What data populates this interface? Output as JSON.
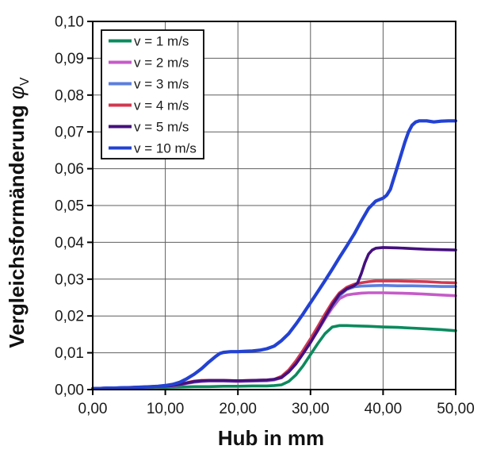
{
  "chart_data": {
    "type": "line",
    "title": "",
    "xlabel": "Hub in mm",
    "ylabel": "Vergleichsformänderung",
    "ylabel_symbol": "φ",
    "ylabel_symbol_sub": "V",
    "xlim": [
      0,
      50
    ],
    "ylim": [
      0,
      0.1
    ],
    "x_ticks": [
      0,
      10,
      20,
      30,
      40,
      50
    ],
    "x_tick_labels": [
      "0,00",
      "10,00",
      "20,00",
      "30,00",
      "40,00",
      "50,00"
    ],
    "y_ticks": [
      0,
      0.01,
      0.02,
      0.03,
      0.04,
      0.05,
      0.06,
      0.07,
      0.08,
      0.09,
      0.1
    ],
    "y_tick_labels": [
      "0,00",
      "0,01",
      "0,02",
      "0,03",
      "0,04",
      "0,05",
      "0,06",
      "0,07",
      "0,08",
      "0,09",
      "0,10"
    ],
    "grid": true,
    "legend_position": "top-left",
    "colors": {
      "grid": "#5f5f5f",
      "axis": "#000000",
      "background": "#ffffff",
      "text": "#1a1a1a"
    },
    "series": [
      {
        "name": "v = 1 m/s",
        "color": "#0b8a5e",
        "points": [
          [
            0,
            0.0002
          ],
          [
            2,
            0.0003
          ],
          [
            4,
            0.0004
          ],
          [
            6,
            0.0004
          ],
          [
            8,
            0.0005
          ],
          [
            10,
            0.0006
          ],
          [
            12,
            0.0007
          ],
          [
            14,
            0.0008
          ],
          [
            16,
            0.0008
          ],
          [
            18,
            0.0009
          ],
          [
            20,
            0.0009
          ],
          [
            22,
            0.001
          ],
          [
            24,
            0.001
          ],
          [
            25,
            0.0011
          ],
          [
            26,
            0.0013
          ],
          [
            27,
            0.0022
          ],
          [
            28,
            0.004
          ],
          [
            29,
            0.0065
          ],
          [
            30,
            0.0095
          ],
          [
            31,
            0.0125
          ],
          [
            32,
            0.0152
          ],
          [
            33,
            0.017
          ],
          [
            34,
            0.0174
          ],
          [
            35,
            0.0174
          ],
          [
            36,
            0.0173
          ],
          [
            38,
            0.0172
          ],
          [
            40,
            0.017
          ],
          [
            42,
            0.0169
          ],
          [
            44,
            0.0167
          ],
          [
            46,
            0.0165
          ],
          [
            48,
            0.0163
          ],
          [
            50,
            0.016
          ]
        ]
      },
      {
        "name": "v = 2 m/s",
        "color": "#c55bc8",
        "points": [
          [
            0,
            0.0003
          ],
          [
            2,
            0.0004
          ],
          [
            4,
            0.0005
          ],
          [
            6,
            0.0006
          ],
          [
            8,
            0.0007
          ],
          [
            10,
            0.0008
          ],
          [
            11,
            0.001
          ],
          [
            12,
            0.0013
          ],
          [
            13,
            0.0017
          ],
          [
            14,
            0.002
          ],
          [
            15,
            0.0022
          ],
          [
            16,
            0.0023
          ],
          [
            18,
            0.0023
          ],
          [
            20,
            0.0022
          ],
          [
            22,
            0.0023
          ],
          [
            24,
            0.0024
          ],
          [
            25,
            0.0026
          ],
          [
            26,
            0.0032
          ],
          [
            27,
            0.0048
          ],
          [
            28,
            0.007
          ],
          [
            29,
            0.0098
          ],
          [
            30,
            0.0128
          ],
          [
            31,
            0.016
          ],
          [
            32,
            0.0192
          ],
          [
            33,
            0.0222
          ],
          [
            34,
            0.0247
          ],
          [
            35,
            0.0257
          ],
          [
            36,
            0.026
          ],
          [
            37,
            0.0262
          ],
          [
            38,
            0.0263
          ],
          [
            40,
            0.0263
          ],
          [
            42,
            0.0262
          ],
          [
            44,
            0.0261
          ],
          [
            46,
            0.0259
          ],
          [
            48,
            0.0257
          ],
          [
            50,
            0.0255
          ]
        ]
      },
      {
        "name": "v = 3 m/s",
        "color": "#5c7ede",
        "points": [
          [
            0,
            0.0003
          ],
          [
            2,
            0.0004
          ],
          [
            4,
            0.0005
          ],
          [
            6,
            0.0006
          ],
          [
            8,
            0.0007
          ],
          [
            10,
            0.0009
          ],
          [
            11,
            0.0011
          ],
          [
            12,
            0.0014
          ],
          [
            13,
            0.0018
          ],
          [
            14,
            0.0021
          ],
          [
            15,
            0.0023
          ],
          [
            16,
            0.0024
          ],
          [
            18,
            0.0024
          ],
          [
            20,
            0.0023
          ],
          [
            22,
            0.0024
          ],
          [
            24,
            0.0025
          ],
          [
            25,
            0.0027
          ],
          [
            26,
            0.0034
          ],
          [
            27,
            0.005
          ],
          [
            28,
            0.0073
          ],
          [
            29,
            0.0101
          ],
          [
            30,
            0.0131
          ],
          [
            31,
            0.0164
          ],
          [
            32,
            0.0197
          ],
          [
            33,
            0.0228
          ],
          [
            34,
            0.0255
          ],
          [
            35,
            0.0272
          ],
          [
            36,
            0.0279
          ],
          [
            37,
            0.0281
          ],
          [
            38,
            0.0282
          ],
          [
            40,
            0.0283
          ],
          [
            42,
            0.0282
          ],
          [
            44,
            0.0282
          ],
          [
            46,
            0.0281
          ],
          [
            48,
            0.028
          ],
          [
            50,
            0.028
          ]
        ]
      },
      {
        "name": "v = 4 m/s",
        "color": "#d23850",
        "points": [
          [
            0,
            0.0003
          ],
          [
            2,
            0.0004
          ],
          [
            4,
            0.0005
          ],
          [
            6,
            0.0007
          ],
          [
            8,
            0.0008
          ],
          [
            10,
            0.001
          ],
          [
            11,
            0.0012
          ],
          [
            12,
            0.0015
          ],
          [
            13,
            0.0019
          ],
          [
            14,
            0.0023
          ],
          [
            15,
            0.0025
          ],
          [
            16,
            0.0025
          ],
          [
            18,
            0.0025
          ],
          [
            20,
            0.0024
          ],
          [
            22,
            0.0025
          ],
          [
            24,
            0.0026
          ],
          [
            25,
            0.0028
          ],
          [
            26,
            0.0036
          ],
          [
            27,
            0.0053
          ],
          [
            28,
            0.0078
          ],
          [
            29,
            0.0107
          ],
          [
            30,
            0.0138
          ],
          [
            31,
            0.0171
          ],
          [
            32,
            0.0205
          ],
          [
            33,
            0.0237
          ],
          [
            34,
            0.0263
          ],
          [
            35,
            0.0278
          ],
          [
            36,
            0.0286
          ],
          [
            37,
            0.029
          ],
          [
            38,
            0.0293
          ],
          [
            39,
            0.0295
          ],
          [
            40,
            0.0295
          ],
          [
            42,
            0.0295
          ],
          [
            44,
            0.0294
          ],
          [
            46,
            0.0293
          ],
          [
            48,
            0.0291
          ],
          [
            50,
            0.029
          ]
        ]
      },
      {
        "name": "v = 5 m/s",
        "color": "#45107e",
        "points": [
          [
            0,
            0.0003
          ],
          [
            2,
            0.0004
          ],
          [
            4,
            0.0005
          ],
          [
            6,
            0.0006
          ],
          [
            8,
            0.0008
          ],
          [
            10,
            0.0009
          ],
          [
            11,
            0.0011
          ],
          [
            12,
            0.0014
          ],
          [
            13,
            0.0018
          ],
          [
            14,
            0.0022
          ],
          [
            15,
            0.0024
          ],
          [
            16,
            0.0025
          ],
          [
            18,
            0.0025
          ],
          [
            20,
            0.0024
          ],
          [
            22,
            0.0025
          ],
          [
            24,
            0.0026
          ],
          [
            25,
            0.0028
          ],
          [
            26,
            0.0033
          ],
          [
            27,
            0.0048
          ],
          [
            28,
            0.007
          ],
          [
            29,
            0.0098
          ],
          [
            30,
            0.0128
          ],
          [
            31,
            0.0161
          ],
          [
            32,
            0.0196
          ],
          [
            33,
            0.023
          ],
          [
            34,
            0.0259
          ],
          [
            35,
            0.0274
          ],
          [
            36,
            0.0282
          ],
          [
            36.5,
            0.029
          ],
          [
            37,
            0.0315
          ],
          [
            37.5,
            0.0345
          ],
          [
            38,
            0.0368
          ],
          [
            38.5,
            0.0379
          ],
          [
            39,
            0.0384
          ],
          [
            40,
            0.0386
          ],
          [
            42,
            0.0385
          ],
          [
            44,
            0.0383
          ],
          [
            46,
            0.0381
          ],
          [
            48,
            0.038
          ],
          [
            50,
            0.0379
          ]
        ]
      },
      {
        "name": "v = 10 m/s",
        "color": "#2342d2",
        "points": [
          [
            0,
            0.0003
          ],
          [
            1,
            0.0003
          ],
          [
            2,
            0.0004
          ],
          [
            3,
            0.0004
          ],
          [
            4,
            0.0005
          ],
          [
            5,
            0.0005
          ],
          [
            6,
            0.0006
          ],
          [
            7,
            0.0007
          ],
          [
            8,
            0.0008
          ],
          [
            9,
            0.0009
          ],
          [
            10,
            0.0011
          ],
          [
            11,
            0.0014
          ],
          [
            12,
            0.002
          ],
          [
            13,
            0.003
          ],
          [
            14,
            0.0042
          ],
          [
            15,
            0.0057
          ],
          [
            16,
            0.0075
          ],
          [
            17,
            0.0091
          ],
          [
            17.5,
            0.0098
          ],
          [
            18,
            0.0101
          ],
          [
            19,
            0.0103
          ],
          [
            20,
            0.0103
          ],
          [
            21,
            0.0104
          ],
          [
            22,
            0.0105
          ],
          [
            23,
            0.0107
          ],
          [
            24,
            0.0111
          ],
          [
            25,
            0.0118
          ],
          [
            26,
            0.0133
          ],
          [
            27,
            0.0152
          ],
          [
            28,
            0.0178
          ],
          [
            29,
            0.0206
          ],
          [
            30,
            0.0236
          ],
          [
            31,
            0.0266
          ],
          [
            32,
            0.0296
          ],
          [
            33,
            0.0327
          ],
          [
            34,
            0.0359
          ],
          [
            35,
            0.039
          ],
          [
            36,
            0.0422
          ],
          [
            37,
            0.0458
          ],
          [
            38,
            0.0492
          ],
          [
            39,
            0.0512
          ],
          [
            40,
            0.052
          ],
          [
            40.5,
            0.0528
          ],
          [
            41,
            0.0544
          ],
          [
            42,
            0.0607
          ],
          [
            43,
            0.0672
          ],
          [
            43.5,
            0.07
          ],
          [
            44,
            0.0718
          ],
          [
            44.5,
            0.0727
          ],
          [
            45,
            0.073
          ],
          [
            46,
            0.073
          ],
          [
            47,
            0.0727
          ],
          [
            48,
            0.0729
          ],
          [
            49,
            0.073
          ],
          [
            50,
            0.073
          ]
        ]
      }
    ]
  }
}
